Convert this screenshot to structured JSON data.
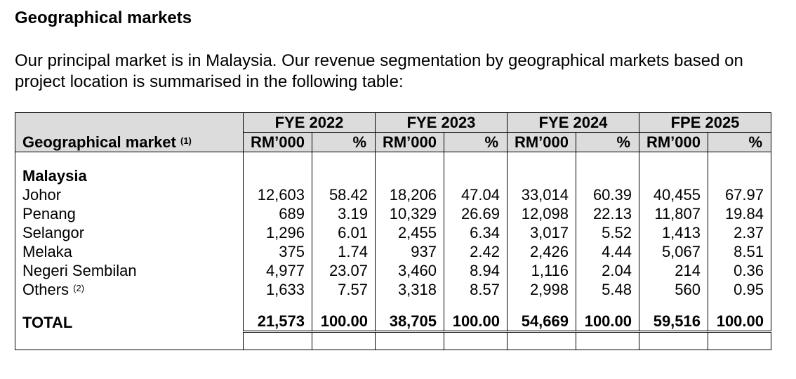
{
  "heading": "Geographical markets",
  "intro": "Our principal market is in Malaysia. Our revenue segmentation by geographical markets based on project location is summarised in the following table:",
  "table": {
    "label_header": "Geographical market",
    "label_header_note": "(1)",
    "periods": [
      {
        "label": "FYE 2022",
        "rm": "RM’000",
        "pct": "%"
      },
      {
        "label": "FYE 2023",
        "rm": "RM’000",
        "pct": "%"
      },
      {
        "label": "FYE 2024",
        "rm": "RM’000",
        "pct": "%"
      },
      {
        "label": "FPE 2025",
        "rm": "RM’000",
        "pct": "%"
      }
    ],
    "region": "Malaysia",
    "rows": [
      {
        "name": "Johor",
        "note": "",
        "values": [
          "12,603",
          "58.42",
          "18,206",
          "47.04",
          "33,014",
          "60.39",
          "40,455",
          "67.97"
        ]
      },
      {
        "name": "Penang",
        "note": "",
        "values": [
          "689",
          "3.19",
          "10,329",
          "26.69",
          "12,098",
          "22.13",
          "11,807",
          "19.84"
        ]
      },
      {
        "name": "Selangor",
        "note": "",
        "values": [
          "1,296",
          "6.01",
          "2,455",
          "6.34",
          "3,017",
          "5.52",
          "1,413",
          "2.37"
        ]
      },
      {
        "name": "Melaka",
        "note": "",
        "values": [
          "375",
          "1.74",
          "937",
          "2.42",
          "2,426",
          "4.44",
          "5,067",
          "8.51"
        ]
      },
      {
        "name": "Negeri Sembilan",
        "note": "",
        "values": [
          "4,977",
          "23.07",
          "3,460",
          "8.94",
          "1,116",
          "2.04",
          "214",
          "0.36"
        ]
      },
      {
        "name": "Others",
        "note": "(2)",
        "values": [
          "1,633",
          "7.57",
          "3,318",
          "8.57",
          "2,998",
          "5.48",
          "560",
          "0.95"
        ]
      }
    ],
    "total": {
      "name": "TOTAL",
      "values": [
        "21,573",
        "100.00",
        "38,705",
        "100.00",
        "54,669",
        "100.00",
        "59,516",
        "100.00"
      ]
    }
  }
}
